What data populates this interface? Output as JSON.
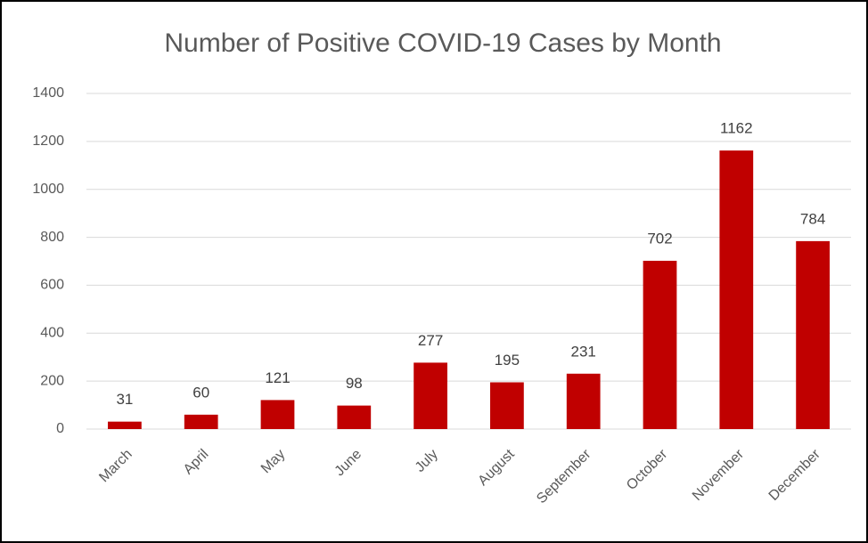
{
  "chart_data": {
    "type": "bar",
    "title": "Number of Positive COVID-19 Cases by Month",
    "categories": [
      "March",
      "April",
      "May",
      "June",
      "July",
      "August",
      "September",
      "October",
      "November",
      "December"
    ],
    "values": [
      31,
      60,
      121,
      98,
      277,
      195,
      231,
      702,
      1162,
      784
    ],
    "color": "#c00000",
    "ylim": [
      0,
      1400
    ],
    "yticks": [
      0,
      200,
      400,
      600,
      800,
      1000,
      1200,
      1400
    ],
    "grid": true
  }
}
